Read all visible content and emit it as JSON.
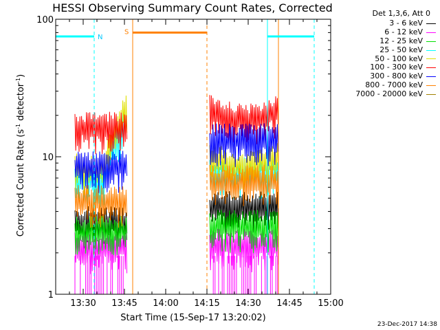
{
  "chart_data": {
    "type": "line",
    "title": "HESSI Observing Summary Count Rates, Corrected",
    "xlabel": "Start Time (15-Sep-17 13:20:02)",
    "ylabel": "Corrected Count Rate (s⁻¹ detector⁻¹)",
    "yscale": "log",
    "ylim": [
      1,
      100
    ],
    "xlim": [
      "13:20",
      "15:00"
    ],
    "x_ticks": [
      "13:30",
      "13:45",
      "14:00",
      "14:15",
      "14:30",
      "14:45",
      "15:00"
    ],
    "y_ticks": [
      "1",
      "10",
      "100"
    ],
    "legend_title": "Det 1,3,6, Att 0",
    "legend_position": "right-outside",
    "series": [
      {
        "name": "3 - 6 keV",
        "color": "#000000",
        "levels": [
          3.5,
          4.5
        ]
      },
      {
        "name": "6 - 12 keV",
        "color": "#ff00ff",
        "levels": [
          2.3,
          2.4
        ]
      },
      {
        "name": "12 - 25 keV",
        "color": "#00e000",
        "levels": [
          3.0,
          3.3
        ]
      },
      {
        "name": "25 - 50 keV",
        "color": "#00ffff",
        "levels": [
          7.0,
          8.0
        ]
      },
      {
        "name": "50 - 100 keV",
        "color": "#e0e000",
        "levels": [
          8.5,
          10.5
        ]
      },
      {
        "name": "100 - 300 keV",
        "color": "#ff0000",
        "levels": [
          17,
          23
        ]
      },
      {
        "name": "300 - 800 keV",
        "color": "#0000ff",
        "levels": [
          9.0,
          14
        ]
      },
      {
        "name": "800 - 7000 keV",
        "color": "#ff8000",
        "levels": [
          5.0,
          7.0
        ]
      },
      {
        "name": "7000 - 20000 keV",
        "color": "#a08000",
        "levels": [
          null,
          null
        ]
      }
    ],
    "segments": [
      {
        "start": "13:27",
        "end": "13:46"
      },
      {
        "start": "14:16",
        "end": "14:41"
      }
    ],
    "annotations": {
      "N_label": "N",
      "S_label": "S",
      "night": [
        {
          "start": "13:20",
          "end": "13:34",
          "level": 75
        },
        {
          "start": "14:37",
          "end": "14:54",
          "level": 75
        }
      ],
      "saa": {
        "start": "13:48",
        "end": "14:15",
        "level": 80
      },
      "lines": [
        {
          "t": "13:20",
          "color": "#00ffff",
          "dash": false
        },
        {
          "t": "13:34",
          "color": "#00ffff",
          "dash": true
        },
        {
          "t": "13:48",
          "color": "#ff8000",
          "dash": false
        },
        {
          "t": "14:15",
          "color": "#ff8000",
          "dash": true
        },
        {
          "t": "14:37",
          "color": "#00ffff",
          "dash": false
        },
        {
          "t": "14:41",
          "color": "#ff8000",
          "dash": false
        },
        {
          "t": "14:54",
          "color": "#00ffff",
          "dash": true
        }
      ]
    }
  },
  "footer": {
    "timestamp": "23-Dec-2017 14:38"
  }
}
